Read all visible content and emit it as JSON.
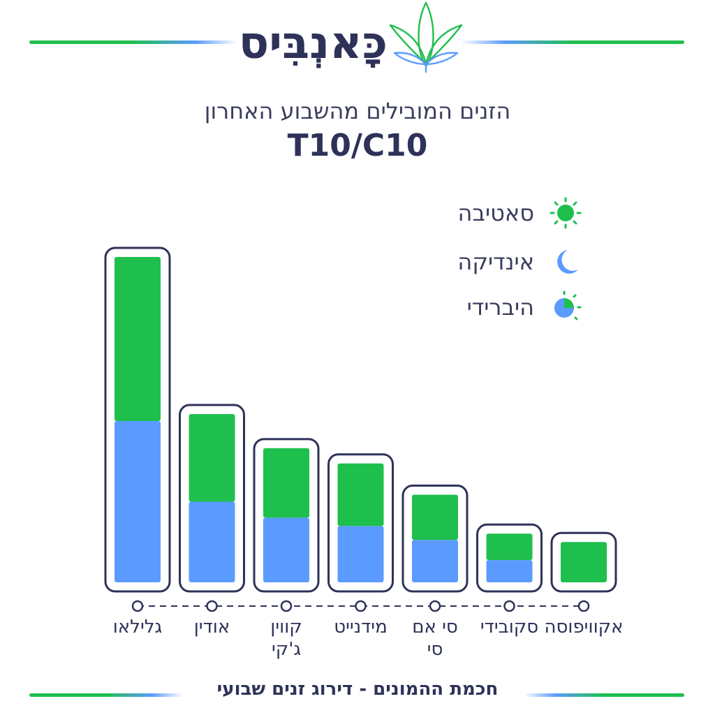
{
  "brand": {
    "name": "כָּאנְבִּיס",
    "colors": {
      "navy": "#2e3259",
      "green": "#1fbf4e",
      "blue": "#5b9bff"
    }
  },
  "header": {
    "subtitle": "הזנים המובילים מהשבוע האחרון",
    "title": "T10/C10"
  },
  "legend": [
    {
      "label": "סאטיבה",
      "icon": "sun-icon",
      "color": "#1fbf4e"
    },
    {
      "label": "אינדיקה",
      "icon": "moon-icon",
      "color": "#5b9bff"
    },
    {
      "label": "היברידי",
      "icon": "half-sun-moon-icon",
      "color": "#5b9bff"
    }
  ],
  "chart_data": {
    "type": "bar",
    "stacked": true,
    "categories": [
      "גלילאו",
      "אודין",
      "קווין\nג'קי",
      "מידנייט",
      "סי אם\nסי",
      "סקובידי",
      "אקוויפוסה"
    ],
    "series": [
      {
        "name": "אינדיקה",
        "color": "#5b9bff",
        "values": [
          232,
          116,
          93,
          81,
          61,
          32,
          0
        ]
      },
      {
        "name": "סאטיבה",
        "color": "#1fbf4e",
        "values": [
          236,
          126,
          100,
          90,
          65,
          38,
          58
        ]
      }
    ],
    "ylim": [
      0,
      470
    ],
    "grid": false
  },
  "footer": {
    "text": "חכמת ההמונים - דירוג זנים שבועי"
  }
}
